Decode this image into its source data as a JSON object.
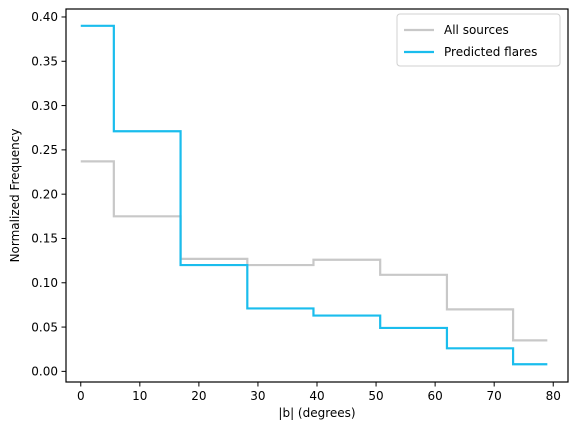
{
  "chart_data": {
    "type": "line",
    "style": "step-histogram",
    "xlabel": "|b| (degrees)",
    "ylabel": "Normalized Frequency",
    "xlim": [
      -2.5,
      82.5
    ],
    "ylim": [
      -0.012,
      0.409
    ],
    "xticks": [
      0,
      10,
      20,
      30,
      40,
      50,
      60,
      70,
      80
    ],
    "yticks": [
      0.0,
      0.05,
      0.1,
      0.15,
      0.2,
      0.25,
      0.3,
      0.35,
      0.4
    ],
    "ytick_labels": [
      "0.00",
      "0.05",
      "0.10",
      "0.15",
      "0.20",
      "0.25",
      "0.30",
      "0.35",
      "0.40"
    ],
    "bin_edges": [
      0,
      5.6,
      16.9,
      28.2,
      39.4,
      50.7,
      62.0,
      73.2,
      79.0
    ],
    "series": [
      {
        "name": "All sources",
        "color": "#c8c8c8",
        "values": [
          0.237,
          0.175,
          0.127,
          0.12,
          0.126,
          0.109,
          0.07,
          0.035
        ]
      },
      {
        "name": "Predicted flares",
        "color": "#1abded",
        "values": [
          0.39,
          0.271,
          0.12,
          0.071,
          0.063,
          0.049,
          0.026,
          0.008
        ]
      }
    ],
    "legend_position": "top-right",
    "grid": false
  }
}
